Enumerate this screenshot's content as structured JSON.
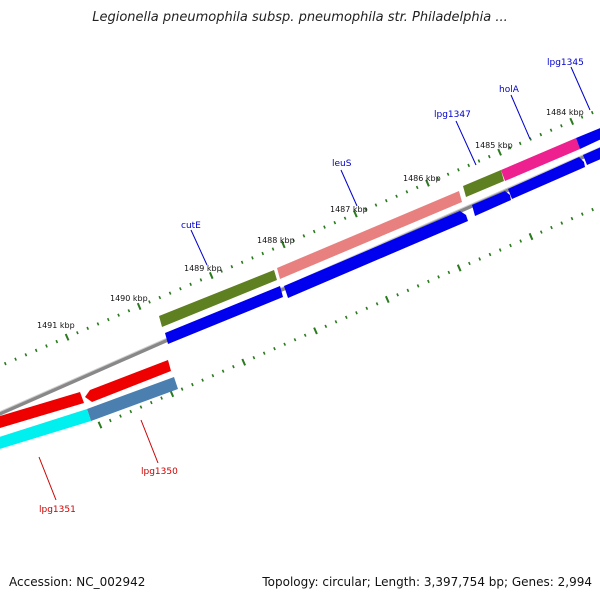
{
  "title": "Legionella pneumophila subsp. pneumophila str. Philadelphia ...",
  "footer": {
    "accession": "Accession: NC_002942",
    "summary": "Topology: circular; Length: 3,397,754 bp; Genes: 2,994"
  },
  "scale": {
    "unit_labels": [
      "1484 kbp",
      "1485 kbp",
      "1486 kbp",
      "1487 kbp",
      "1488 kbp",
      "1489 kbp",
      "1490 kbp",
      "1491 kbp"
    ]
  },
  "colors": {
    "forward_label": "#0000cc",
    "reverse_label": "#cc0000",
    "tick": "#2a7a1e",
    "backbone": "#888888",
    "cog_blue": "#0000ee",
    "cog_green": "#5f8020",
    "cog_salmon": "#e88080",
    "cog_pink": "#ee2090",
    "cog_red": "#ee0000",
    "cog_cyan": "#00f0f0",
    "cog_steel": "#4a7fb0"
  },
  "genes_forward": [
    {
      "label": "lpg1345"
    },
    {
      "label": "holA"
    },
    {
      "label": "lpg1347"
    },
    {
      "label": "leuS"
    },
    {
      "label": "cutE"
    }
  ],
  "genes_reverse": [
    {
      "label": "lpg1350"
    },
    {
      "label": "lpg1351"
    }
  ]
}
